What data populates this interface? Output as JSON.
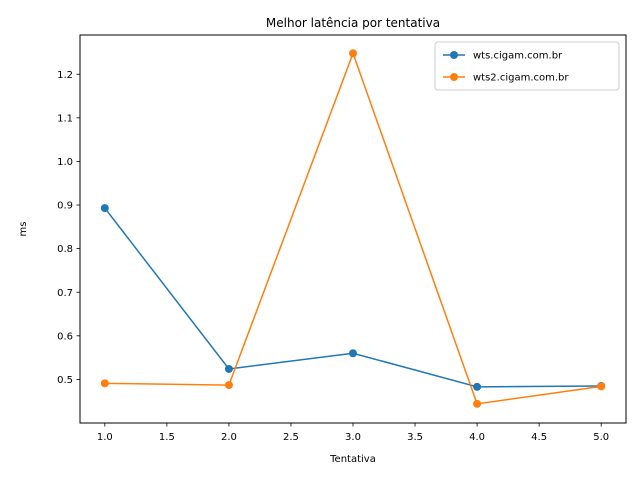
{
  "chart_data": {
    "type": "line",
    "title": "Melhor latência por tentativa",
    "xlabel": "Tentativa",
    "ylabel": "ms",
    "xlim": [
      0.8,
      5.2
    ],
    "ylim": [
      0.4,
      1.29
    ],
    "xticks": [
      1.0,
      1.5,
      2.0,
      2.5,
      3.0,
      3.5,
      4.0,
      4.5,
      5.0
    ],
    "xtick_labels": [
      "1.0",
      "1.5",
      "2.0",
      "2.5",
      "3.0",
      "3.5",
      "4.0",
      "4.5",
      "5.0"
    ],
    "yticks": [
      0.5,
      0.6,
      0.7,
      0.8,
      0.9,
      1.0,
      1.1,
      1.2
    ],
    "ytick_labels": [
      "0.5",
      "0.6",
      "0.7",
      "0.8",
      "0.9",
      "1.0",
      "1.1",
      "1.2"
    ],
    "grid": false,
    "legend_position": "top-right",
    "x": [
      1,
      2,
      3,
      4,
      5
    ],
    "series": [
      {
        "name": "wts.cigam.com.br",
        "color": "#1f77b4",
        "values": [
          0.893,
          0.524,
          0.56,
          0.483,
          0.485
        ]
      },
      {
        "name": "wts2.cigam.com.br",
        "color": "#ff7f0e",
        "values": [
          0.491,
          0.487,
          1.248,
          0.444,
          0.484
        ]
      }
    ]
  }
}
